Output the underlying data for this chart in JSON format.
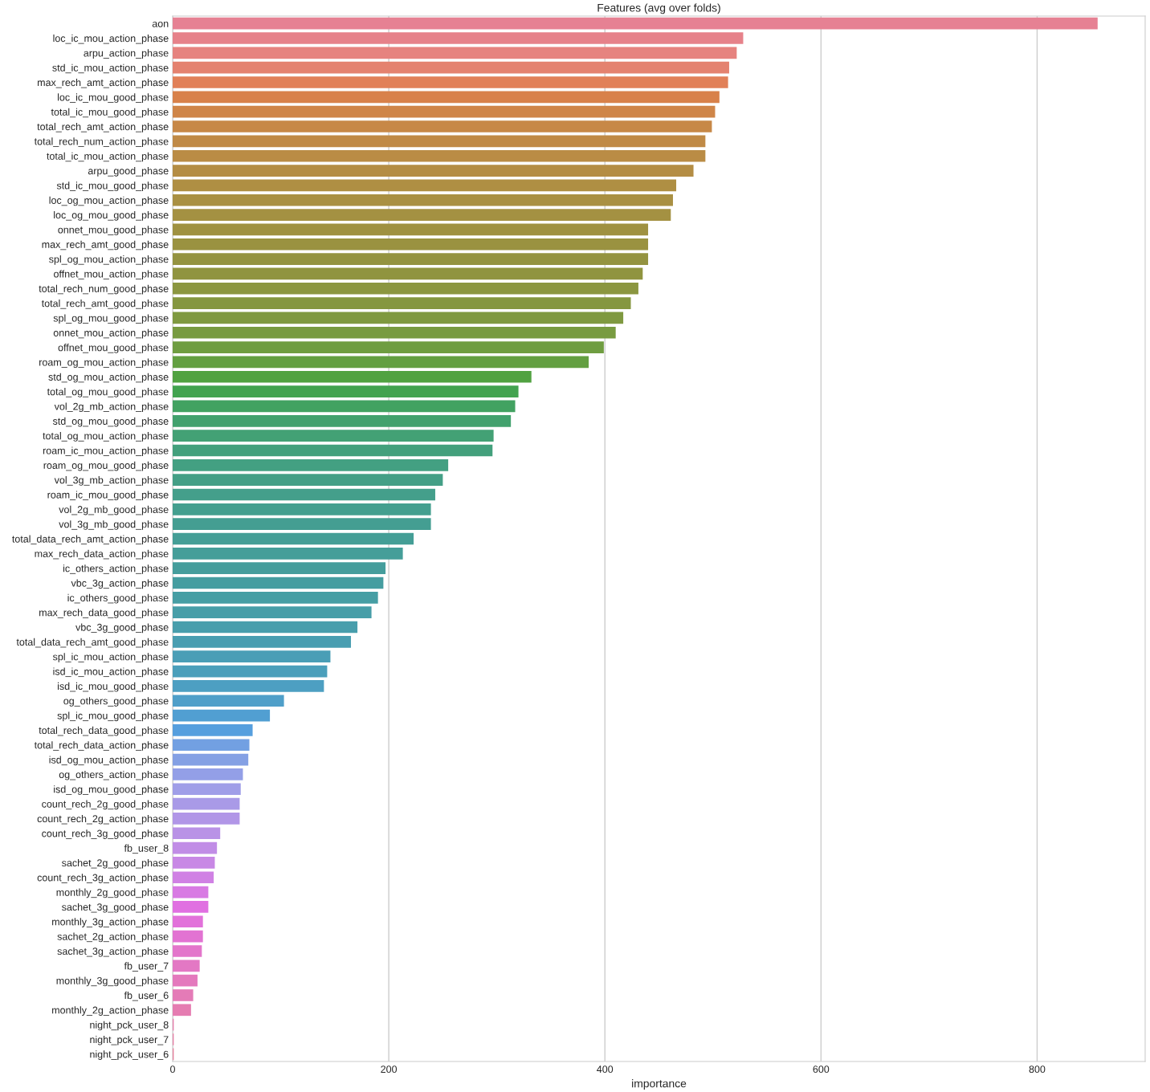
{
  "chart_data": {
    "type": "bar",
    "orientation": "horizontal",
    "title": "Features (avg over folds)",
    "xlabel": "importance",
    "categories": [
      "aon",
      "loc_ic_mou_action_phase",
      "arpu_action_phase",
      "std_ic_mou_action_phase",
      "max_rech_amt_action_phase",
      "loc_ic_mou_good_phase",
      "total_ic_mou_good_phase",
      "total_rech_amt_action_phase",
      "total_rech_num_action_phase",
      "total_ic_mou_action_phase",
      "arpu_good_phase",
      "std_ic_mou_good_phase",
      "loc_og_mou_action_phase",
      "loc_og_mou_good_phase",
      "onnet_mou_good_phase",
      "max_rech_amt_good_phase",
      "spl_og_mou_action_phase",
      "offnet_mou_action_phase",
      "total_rech_num_good_phase",
      "total_rech_amt_good_phase",
      "spl_og_mou_good_phase",
      "onnet_mou_action_phase",
      "offnet_mou_good_phase",
      "roam_og_mou_action_phase",
      "std_og_mou_action_phase",
      "total_og_mou_good_phase",
      "vol_2g_mb_action_phase",
      "std_og_mou_good_phase",
      "total_og_mou_action_phase",
      "roam_ic_mou_action_phase",
      "roam_og_mou_good_phase",
      "vol_3g_mb_action_phase",
      "roam_ic_mou_good_phase",
      "vol_2g_mb_good_phase",
      "vol_3g_mb_good_phase",
      "total_data_rech_amt_action_phase",
      "max_rech_data_action_phase",
      "ic_others_action_phase",
      "vbc_3g_action_phase",
      "ic_others_good_phase",
      "max_rech_data_good_phase",
      "vbc_3g_good_phase",
      "total_data_rech_amt_good_phase",
      "spl_ic_mou_action_phase",
      "isd_ic_mou_action_phase",
      "isd_ic_mou_good_phase",
      "og_others_good_phase",
      "spl_ic_mou_good_phase",
      "total_rech_data_good_phase",
      "total_rech_data_action_phase",
      "isd_og_mou_action_phase",
      "og_others_action_phase",
      "isd_og_mou_good_phase",
      "count_rech_2g_good_phase",
      "count_rech_2g_action_phase",
      "count_rech_3g_good_phase",
      "fb_user_8",
      "sachet_2g_good_phase",
      "count_rech_3g_action_phase",
      "monthly_2g_good_phase",
      "sachet_3g_good_phase",
      "monthly_3g_action_phase",
      "sachet_2g_action_phase",
      "sachet_3g_action_phase",
      "fb_user_7",
      "monthly_3g_good_phase",
      "fb_user_6",
      "monthly_2g_action_phase",
      "night_pck_user_8",
      "night_pck_user_7",
      "night_pck_user_6"
    ],
    "values": [
      856,
      528,
      522,
      515,
      514,
      506,
      502,
      499,
      493,
      493,
      482,
      466,
      463,
      461,
      440,
      440,
      440,
      435,
      431,
      424,
      417,
      410,
      399,
      385,
      332,
      320,
      317,
      313,
      297,
      296,
      255,
      250,
      243,
      239,
      239,
      223,
      213,
      197,
      195,
      190,
      184,
      171,
      165,
      146,
      143,
      140,
      103,
      90,
      74,
      71,
      70,
      65,
      63,
      62,
      62,
      44,
      41,
      39,
      38,
      33,
      33,
      28,
      28,
      27,
      25,
      23,
      19,
      17,
      1,
      1,
      1
    ],
    "colors": [
      "#e68193",
      "#e6828a",
      "#e6837f",
      "#e4826f",
      "#e18058",
      "#d8814a",
      "#cf8548",
      "#c78847",
      "#c08a46",
      "#ba8c45",
      "#b48d44",
      "#af8f43",
      "#a99043",
      "#a49142",
      "#9f9141",
      "#9a9240",
      "#949340",
      "#90943f",
      "#8b9640",
      "#859740",
      "#7f9940",
      "#789b40",
      "#6f9d41",
      "#639f41",
      "#51a241",
      "#42a34f",
      "#42a261",
      "#42a16d",
      "#43a175",
      "#43a07c",
      "#43a082",
      "#449f86",
      "#449f8b",
      "#449f8f",
      "#449e92",
      "#449e96",
      "#459e99",
      "#459d9c",
      "#459da0",
      "#469ea4",
      "#479ea8",
      "#489eac",
      "#499eb1",
      "#4a9eb6",
      "#4b9fbb",
      "#4d9fc2",
      "#4f9fc9",
      "#519fd2",
      "#569fde",
      "#72a0e2",
      "#84a0e4",
      "#939fe7",
      "#a09ee8",
      "#a99ae7",
      "#b196e7",
      "#b992e6",
      "#c18de6",
      "#c888e5",
      "#d081e4",
      "#d87ae3",
      "#e070e1",
      "#e271da",
      "#e273d2",
      "#e376cb",
      "#e378c4",
      "#e479bd",
      "#e47bb7",
      "#e57cb1",
      "#e57daa",
      "#e57fa4",
      "#e6809d"
    ],
    "xlim": [
      0,
      900
    ],
    "xticks": [
      0,
      200,
      400,
      600,
      800
    ],
    "grid": "x"
  }
}
